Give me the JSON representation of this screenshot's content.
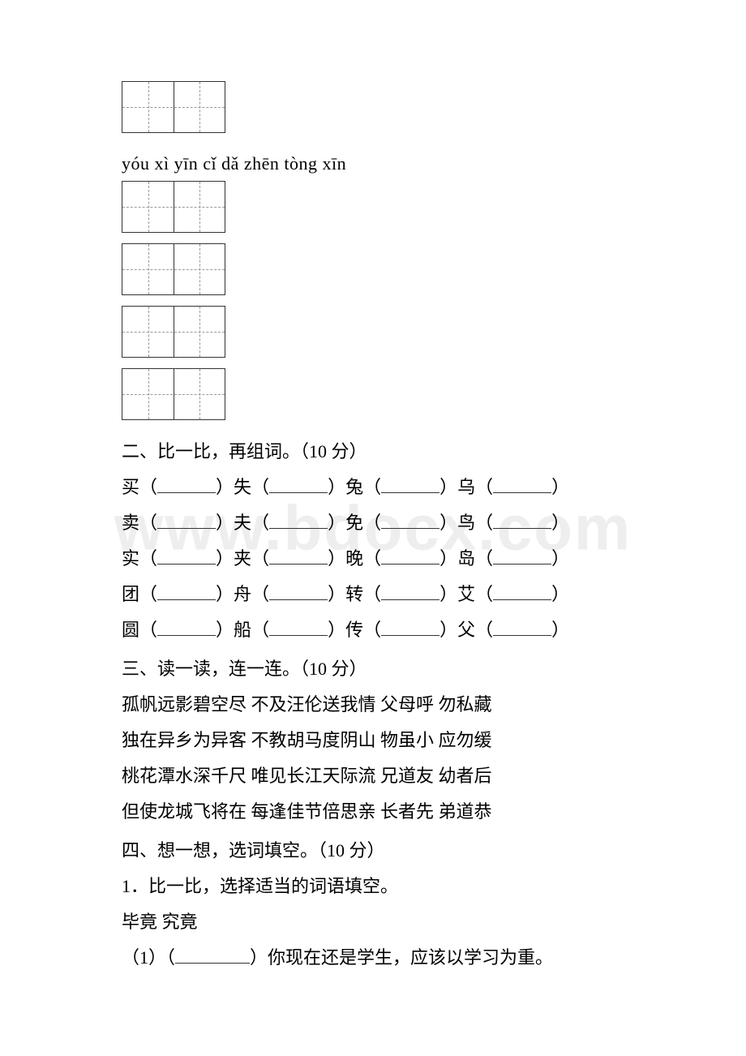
{
  "watermark": "www.bdocx.com",
  "pinyin_line": "yóu xì yīn cǐ dǎ zhēn tòng xīn",
  "sections": {
    "s2": {
      "title": "二、比一比，再组词。（10 分）",
      "rows": [
        [
          "买",
          "失",
          "兔",
          "乌"
        ],
        [
          "卖",
          "夫",
          "免",
          "鸟"
        ],
        [
          "实",
          "夹",
          "晚",
          "岛"
        ],
        [
          "团",
          "舟",
          "转",
          "艾"
        ],
        [
          "圆",
          "船",
          "传",
          "父"
        ]
      ]
    },
    "s3": {
      "title": "三、读一读，连一连。（10 分）",
      "lines": [
        "孤帆远影碧空尽 不及汪伦送我情 父母呼 勿私藏",
        "独在异乡为异客 不教胡马度阴山 物虽小 应勿缓",
        "桃花潭水深千尺 唯见长江天际流 兄道友 幼者后",
        "但使龙城飞将在 每逢佳节倍思亲 长者先 弟道恭"
      ]
    },
    "s4": {
      "title": "四、想一想，选词填空。（10 分）",
      "sub1": "1．比一比，选择适当的词语填空。",
      "options": "毕竟 究竟",
      "q1_prefix": "（1）（",
      "q1_suffix": "）你现在还是学生，应该以学习为重。"
    }
  }
}
